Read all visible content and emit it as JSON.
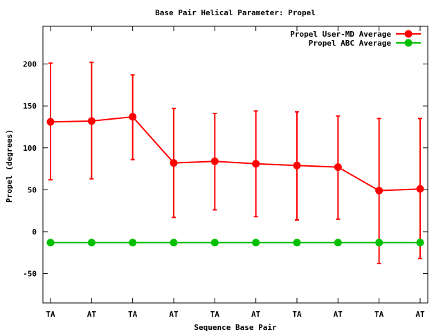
{
  "chart_data": {
    "type": "line",
    "title": "Base Pair Helical Parameter: Propel",
    "xlabel": "Sequence Base Pair",
    "ylabel": "Propel (degrees)",
    "categories": [
      "TA",
      "AT",
      "TA",
      "AT",
      "TA",
      "AT",
      "TA",
      "AT",
      "TA",
      "AT"
    ],
    "ylim": [
      -85,
      245
    ],
    "yticks": [
      -50,
      0,
      50,
      100,
      150,
      200
    ],
    "grid": false,
    "legend_position": "top-right",
    "series": [
      {
        "name": "Propel User-MD Average",
        "color": "#ff0000",
        "values": [
          131,
          132,
          137,
          82,
          84,
          81,
          79,
          77,
          49,
          51
        ],
        "error_low": [
          62,
          63,
          86,
          17,
          26,
          18,
          14,
          15,
          -38,
          -32
        ],
        "error_high": [
          201,
          202,
          187,
          147,
          141,
          144,
          143,
          138,
          135,
          135
        ]
      },
      {
        "name": "Propel ABC Average",
        "color": "#00c000",
        "values": [
          -13,
          -13,
          -13,
          -13,
          -13,
          -13,
          -13,
          -13,
          -13,
          -13
        ]
      }
    ]
  }
}
